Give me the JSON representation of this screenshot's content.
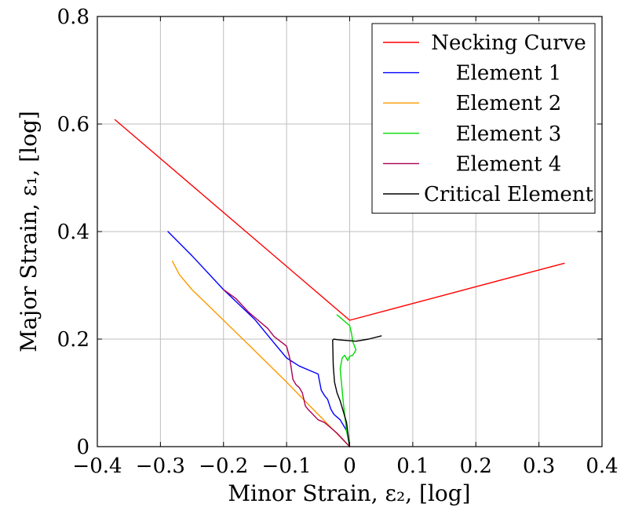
{
  "chart_data": {
    "type": "line",
    "xlabel": "Minor Strain, ε₂, [log]",
    "ylabel": "Major Strain, ε₁, [log]",
    "xlim": [
      -0.4,
      0.4
    ],
    "ylim": [
      0,
      0.8
    ],
    "xticks": [
      {
        "value": -0.4,
        "label": "−0.4"
      },
      {
        "value": -0.3,
        "label": "−0.3"
      },
      {
        "value": -0.2,
        "label": "−0.2"
      },
      {
        "value": -0.1,
        "label": "−0.1"
      },
      {
        "value": 0,
        "label": "0"
      },
      {
        "value": 0.1,
        "label": "0.1"
      },
      {
        "value": 0.2,
        "label": "0.2"
      },
      {
        "value": 0.3,
        "label": "0.3"
      },
      {
        "value": 0.4,
        "label": "0.4"
      }
    ],
    "yticks": [
      {
        "value": 0,
        "label": "0"
      },
      {
        "value": 0.2,
        "label": "0.2"
      },
      {
        "value": 0.4,
        "label": "0.4"
      },
      {
        "value": 0.6,
        "label": "0.6"
      },
      {
        "value": 0.8,
        "label": "0.8"
      }
    ],
    "grid": true,
    "legend_position": "top-right",
    "series": [
      {
        "name": "Necking Curve",
        "color": "#ff0000",
        "points": [
          [
            -0.372,
            0.608
          ],
          [
            0.0,
            0.235
          ],
          [
            0.34,
            0.341
          ]
        ]
      },
      {
        "name": "Element 1",
        "color": "#0000ff",
        "points": [
          [
            -0.288,
            0.4
          ],
          [
            -0.25,
            0.355
          ],
          [
            -0.2,
            0.292
          ],
          [
            -0.15,
            0.236
          ],
          [
            -0.12,
            0.193
          ],
          [
            -0.1,
            0.165
          ],
          [
            -0.08,
            0.15
          ],
          [
            -0.06,
            0.14
          ],
          [
            -0.05,
            0.135
          ],
          [
            -0.045,
            0.105
          ],
          [
            -0.04,
            0.095
          ],
          [
            -0.035,
            0.088
          ],
          [
            -0.03,
            0.07
          ],
          [
            -0.025,
            0.06
          ],
          [
            -0.015,
            0.05
          ],
          [
            -0.005,
            0.03
          ],
          [
            0.0,
            0.0
          ]
        ]
      },
      {
        "name": "Element 2",
        "color": "#ff9900",
        "points": [
          [
            -0.281,
            0.345
          ],
          [
            -0.27,
            0.32
          ],
          [
            -0.25,
            0.292
          ],
          [
            -0.2,
            0.235
          ],
          [
            -0.15,
            0.178
          ],
          [
            -0.1,
            0.12
          ],
          [
            -0.05,
            0.06
          ],
          [
            0.0,
            0.0
          ]
        ]
      },
      {
        "name": "Element 3",
        "color": "#00dd00",
        "points": [
          [
            -0.02,
            0.245
          ],
          [
            -0.01,
            0.235
          ],
          [
            -0.005,
            0.23
          ],
          [
            0.0,
            0.225
          ],
          [
            0.003,
            0.21
          ],
          [
            0.005,
            0.195
          ],
          [
            0.01,
            0.18
          ],
          [
            0.005,
            0.17
          ],
          [
            0.0,
            0.168
          ],
          [
            -0.003,
            0.16
          ],
          [
            -0.008,
            0.17
          ],
          [
            -0.012,
            0.165
          ],
          [
            -0.015,
            0.145
          ],
          [
            -0.01,
            0.08
          ],
          [
            -0.005,
            0.03
          ],
          [
            0.0,
            0.0
          ]
        ]
      },
      {
        "name": "Element 4",
        "color": "#aa0055",
        "points": [
          [
            -0.2,
            0.292
          ],
          [
            -0.18,
            0.275
          ],
          [
            -0.16,
            0.25
          ],
          [
            -0.15,
            0.24
          ],
          [
            -0.13,
            0.22
          ],
          [
            -0.12,
            0.205
          ],
          [
            -0.1,
            0.187
          ],
          [
            -0.095,
            0.165
          ],
          [
            -0.09,
            0.125
          ],
          [
            -0.085,
            0.115
          ],
          [
            -0.08,
            0.11
          ],
          [
            -0.075,
            0.1
          ],
          [
            -0.07,
            0.075
          ],
          [
            -0.065,
            0.068
          ],
          [
            -0.06,
            0.062
          ],
          [
            -0.05,
            0.05
          ],
          [
            -0.04,
            0.045
          ],
          [
            -0.03,
            0.035
          ],
          [
            -0.02,
            0.025
          ],
          [
            0.0,
            0.0
          ]
        ]
      },
      {
        "name": "Critical Element",
        "color": "#000000",
        "points": [
          [
            0.05,
            0.206
          ],
          [
            0.03,
            0.2
          ],
          [
            0.01,
            0.196
          ],
          [
            -0.01,
            0.198
          ],
          [
            -0.02,
            0.199
          ],
          [
            -0.025,
            0.2
          ],
          [
            -0.027,
            0.198
          ],
          [
            -0.026,
            0.15
          ],
          [
            -0.024,
            0.12
          ],
          [
            -0.02,
            0.1
          ],
          [
            -0.015,
            0.085
          ],
          [
            -0.01,
            0.065
          ],
          [
            -0.005,
            0.045
          ],
          [
            0.0,
            0.0
          ]
        ]
      }
    ]
  }
}
